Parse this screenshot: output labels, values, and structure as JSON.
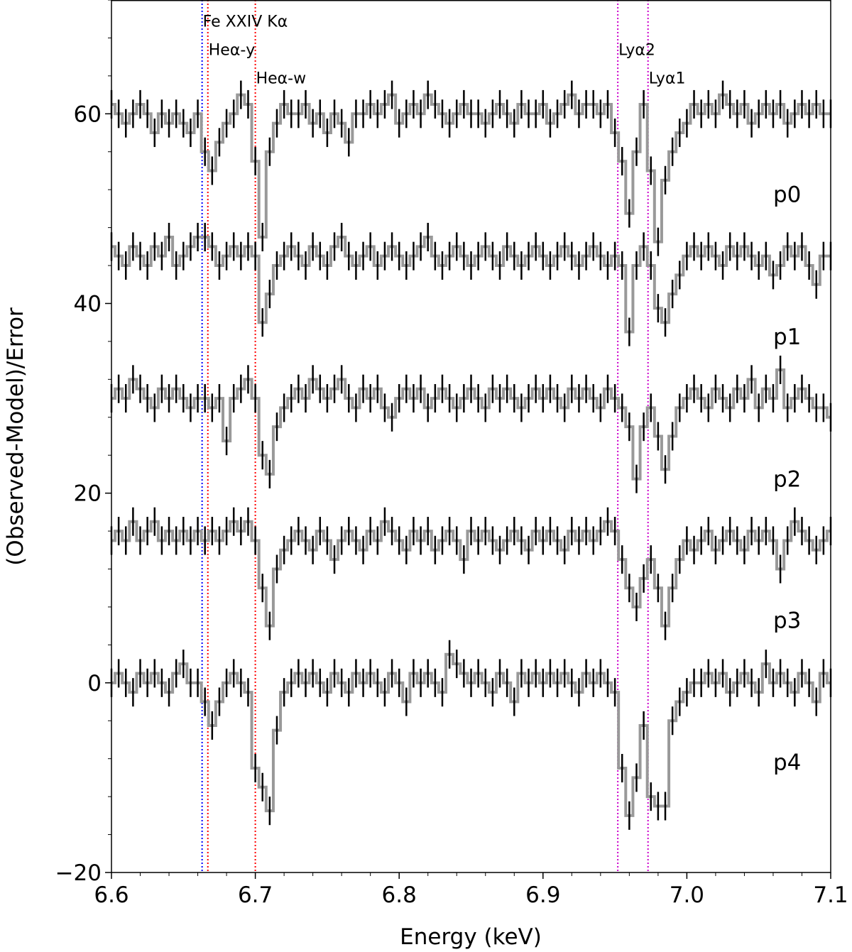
{
  "chart_data": {
    "type": "line",
    "title": "",
    "xlabel": "Energy (keV)",
    "ylabel": "(Observed-Model)/Error",
    "xlim": [
      6.6,
      7.1
    ],
    "ylim": [
      -20,
      72
    ],
    "xticks": [
      "6.6",
      "6.7",
      "6.8",
      "6.9",
      "7.0",
      "7.1"
    ],
    "yticks": [
      "−20",
      "0",
      "20",
      "40",
      "60"
    ],
    "grid": false,
    "x": {
      "start": 6.6,
      "step": 0.005
    },
    "error": 1.5,
    "colors": {
      "step": "#999999",
      "errorbar": "#000000",
      "fe_line": "#0000ff",
      "he_line": "#ff0000",
      "ly_line": "#cc00cc"
    },
    "series": [
      {
        "name": "p0",
        "label_pos": [
          7.06,
          50.7
        ],
        "values": [
          61,
          60,
          59,
          60,
          61,
          60,
          58,
          60,
          59,
          60,
          59,
          58,
          60,
          56,
          54,
          57,
          59,
          60,
          62,
          61,
          55,
          47,
          56,
          59,
          61,
          60,
          60,
          61,
          59,
          60,
          58,
          60,
          59,
          57,
          60,
          60,
          61,
          60,
          61,
          62,
          59,
          60,
          61,
          60,
          62,
          61,
          60,
          59,
          60,
          61,
          60,
          60,
          59,
          60,
          61,
          60,
          59,
          61,
          60,
          60,
          61,
          59,
          60,
          61,
          62,
          60,
          61,
          61,
          60,
          61,
          58,
          55,
          49.5,
          56,
          61,
          54,
          46.5,
          53,
          56,
          58,
          59,
          61,
          60,
          61,
          60,
          62,
          61,
          60,
          61,
          59,
          60,
          61,
          60,
          61,
          59,
          60,
          61,
          60,
          61,
          60,
          60
        ]
      },
      {
        "name": "p1",
        "label_pos": [
          7.06,
          35.7
        ],
        "values": [
          46,
          45,
          44,
          46,
          45,
          44,
          46,
          45,
          47,
          44,
          45,
          46,
          47,
          47,
          46,
          44,
          45,
          46,
          45,
          46,
          45,
          38,
          41,
          44,
          45,
          46,
          45,
          44,
          46,
          45,
          44,
          46,
          47,
          45,
          44,
          45,
          46,
          44,
          45,
          46,
          45,
          44,
          45,
          46,
          47,
          45,
          44,
          45,
          46,
          45,
          44,
          45,
          46,
          45,
          44,
          46,
          45,
          44,
          45,
          46,
          45,
          44,
          45,
          46,
          45,
          44,
          45,
          46,
          45,
          44,
          45,
          44,
          37,
          44,
          46,
          44,
          39.5,
          38,
          41,
          43,
          45,
          46,
          45,
          46,
          45,
          44,
          46,
          45,
          46,
          45,
          44,
          45,
          43,
          44,
          46,
          45,
          46,
          44,
          42,
          45,
          45
        ]
      },
      {
        "name": "p2",
        "label_pos": [
          7.06,
          20.7
        ],
        "values": [
          30,
          31,
          30,
          32,
          31,
          30,
          29,
          31,
          30,
          31,
          30,
          29,
          30,
          30,
          29,
          30,
          25.5,
          30,
          31,
          32,
          30,
          24,
          22,
          27,
          29,
          30,
          31,
          30,
          32,
          31,
          30,
          31,
          32,
          30,
          29,
          31,
          30,
          31,
          29,
          28,
          30,
          31,
          30,
          31,
          29,
          30,
          31,
          30,
          29,
          30,
          31,
          30,
          29,
          31,
          30,
          31,
          30,
          29,
          30,
          31,
          30,
          31,
          30,
          29,
          31,
          30,
          31,
          30,
          29,
          31,
          30,
          29,
          27,
          21.5,
          27,
          29,
          26,
          22.5,
          26,
          29,
          30,
          31,
          30,
          29,
          31,
          30,
          29,
          31,
          30,
          32,
          29,
          31,
          30,
          33,
          29,
          30,
          31,
          30,
          29,
          29,
          28
        ]
      },
      {
        "name": "p3",
        "label_pos": [
          7.06,
          5.8
        ],
        "values": [
          15,
          16,
          15,
          17,
          15,
          16,
          17,
          15,
          16,
          15,
          16,
          15,
          16,
          15,
          16,
          15,
          16,
          17,
          16,
          17,
          15,
          10,
          6,
          12,
          14,
          15,
          16,
          15,
          14,
          16,
          15,
          13,
          15,
          16,
          15,
          14,
          16,
          15,
          17,
          16,
          15,
          14,
          16,
          15,
          16,
          14,
          15,
          16,
          15,
          13,
          16,
          15,
          16,
          15,
          14,
          15,
          16,
          15,
          14,
          16,
          15,
          16,
          15,
          14,
          16,
          15,
          16,
          15,
          16,
          17,
          16,
          13,
          10,
          8,
          11,
          13,
          10,
          6,
          10,
          13,
          15,
          14,
          15,
          16,
          14,
          15,
          16,
          15,
          14,
          16,
          15,
          16,
          15,
          12,
          15,
          17,
          16,
          15,
          14,
          15,
          16
        ]
      },
      {
        "name": "p4",
        "label_pos": [
          7.06,
          -9.2
        ],
        "values": [
          0,
          1,
          0,
          -1,
          1,
          0,
          1,
          0,
          -1,
          1,
          2,
          0,
          0,
          -2,
          -4.5,
          -2,
          0,
          1,
          0,
          -1,
          -9,
          -11,
          -13.5,
          -5,
          -1,
          0,
          1,
          0,
          1,
          0,
          -1,
          1,
          0,
          -1,
          1,
          0,
          1,
          0,
          -1,
          1,
          0,
          -2,
          1,
          0,
          1,
          0,
          -1,
          3,
          2,
          1,
          0,
          1,
          0,
          -1,
          1,
          0,
          -2,
          1,
          0,
          1,
          0,
          1,
          0,
          1,
          0,
          -1,
          1,
          0,
          1,
          0,
          -1,
          -9,
          -14,
          -10,
          -4.5,
          -12,
          -13,
          -13,
          -4,
          -2,
          -1,
          0,
          0,
          1,
          0,
          1,
          -1,
          0,
          1,
          0,
          -1,
          2,
          0,
          1,
          0,
          -1,
          1,
          0,
          -2,
          1,
          0
        ]
      }
    ],
    "annotations": [
      {
        "text": "Fe XXIV Kα",
        "energy": 6.663,
        "y": 69.2,
        "line_color": "fe_line"
      },
      {
        "text": "Heα-y",
        "energy": 6.667,
        "y": 66.2,
        "line_color": "he_line"
      },
      {
        "text": "Heα-w",
        "energy": 6.7,
        "y": 63.2,
        "line_color": "he_line"
      },
      {
        "text": "Lyα2",
        "energy": 6.952,
        "y": 66.2,
        "line_color": "ly_line"
      },
      {
        "text": "Lyα1",
        "energy": 6.973,
        "y": 63.2,
        "line_color": "ly_line"
      }
    ]
  }
}
